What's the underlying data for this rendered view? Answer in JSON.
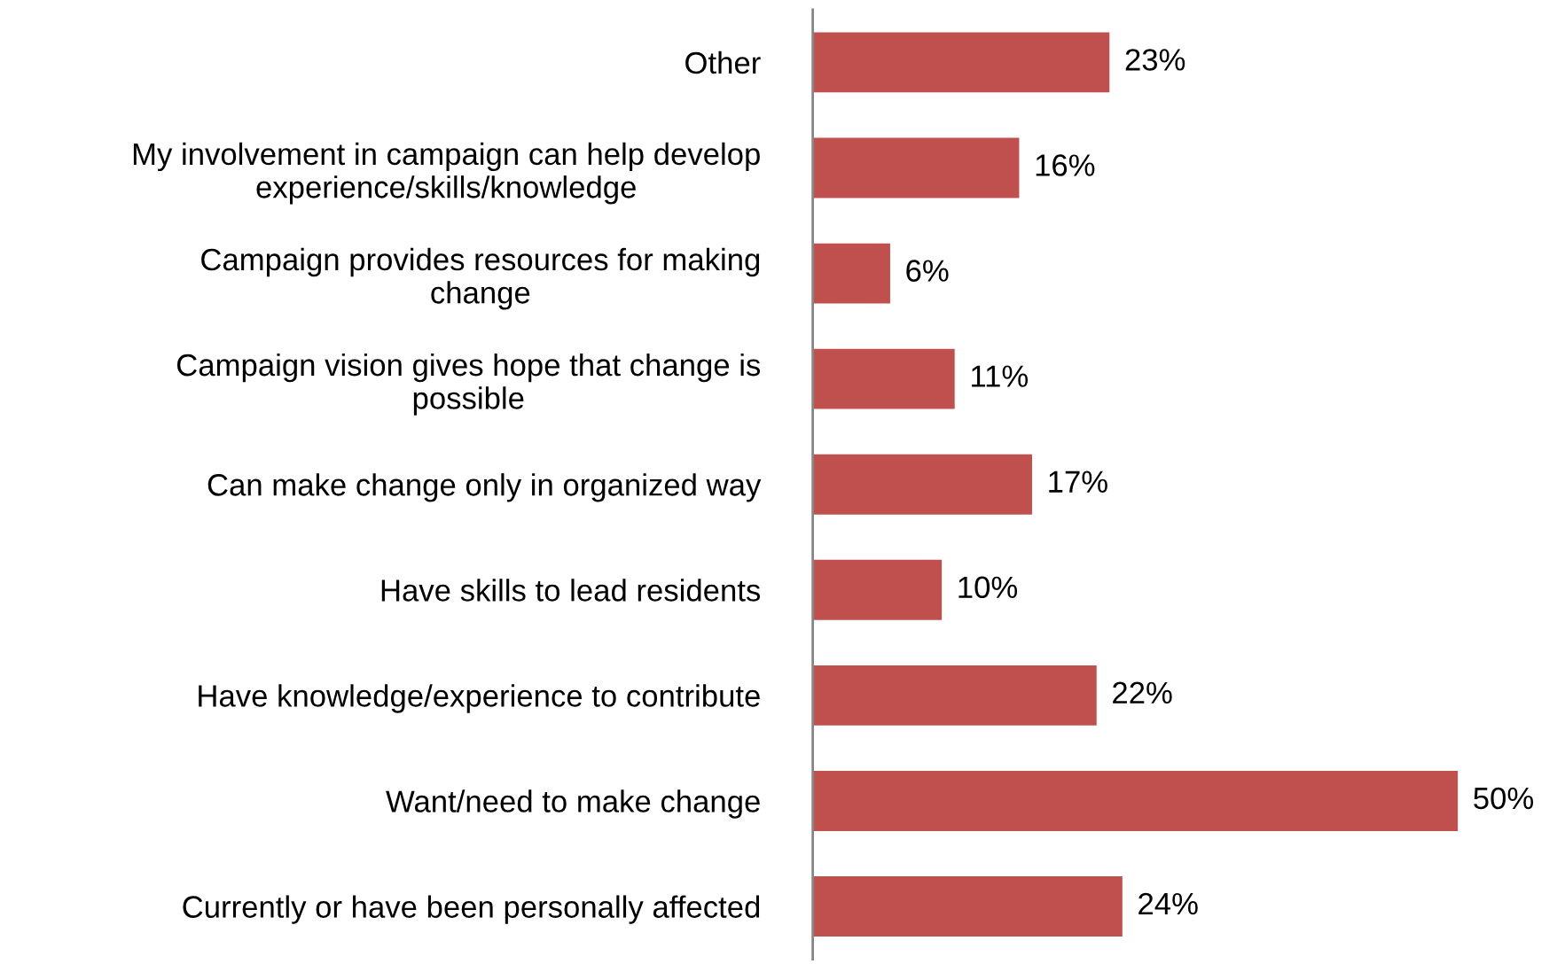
{
  "chart_data": {
    "type": "bar",
    "orientation": "horizontal",
    "categories": [
      "Other",
      "My involvement in campaign can help develop\nexperience/skills/knowledge",
      "Campaign provides resources for making\nchange",
      "Campaign vision gives hope that change is\npossible",
      "Can make change only in organized way",
      "Have skills to lead residents",
      "Have knowledge/experience to contribute",
      "Want/need to make change",
      "Currently or have been personally affected"
    ],
    "values": [
      23,
      16,
      6,
      11,
      17,
      10,
      22,
      50,
      24
    ],
    "value_labels": [
      "23%",
      "16%",
      "6%",
      "11%",
      "17%",
      "10%",
      "22%",
      "50%",
      "24%"
    ],
    "color": "#c0504d",
    "tick_labels": "y",
    "grid": false,
    "legend": false
  }
}
